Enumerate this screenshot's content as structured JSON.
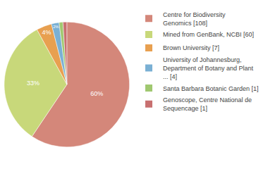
{
  "chart_data": {
    "type": "pie",
    "categories": [
      "Centre for Biodiversity\nGenomics [108]",
      "Mined from GenBank, NCBI [60]",
      "Brown University [7]",
      "University of Johannesburg,\nDepartment of Botany and Plant\n... [4]",
      "Santa Barbara Botanic Garden [1]",
      "Genoscope, Centre National de\nSequencage [1]"
    ],
    "values": [
      60,
      33,
      4,
      2,
      1,
      1
    ],
    "value_labels": [
      "60%",
      "33%",
      "4%",
      "2%",
      null,
      null
    ],
    "colors": [
      "#d4877a",
      "#c8d87a",
      "#e8a050",
      "#7ab0d4",
      "#a0c870",
      "#c87070"
    ],
    "data_labels": true,
    "legend": "right"
  }
}
